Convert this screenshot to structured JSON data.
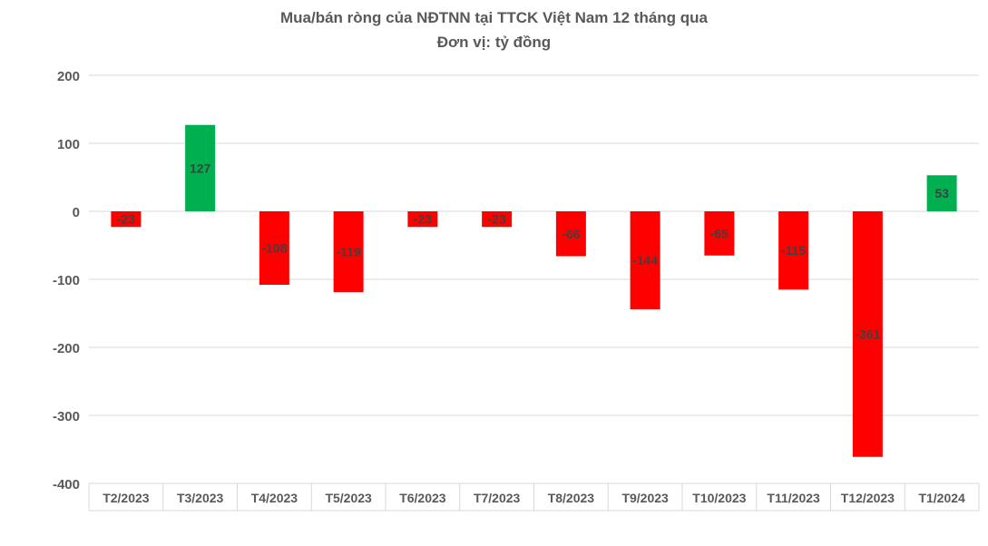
{
  "chart_data": {
    "type": "bar",
    "title": "Mua/bán ròng của NĐTNN tại TTCK Việt Nam 12 tháng qua",
    "subtitle": "Đơn vị: tỷ đồng",
    "categories": [
      "T2/2023",
      "T3/2023",
      "T4/2023",
      "T5/2023",
      "T6/2023",
      "T7/2023",
      "T8/2023",
      "T9/2023",
      "T10/2023",
      "T11/2023",
      "T12/2023",
      "T1/2024"
    ],
    "values": [
      -23,
      127,
      -108,
      -119,
      -23,
      -23,
      -66,
      -144,
      -65,
      -115,
      -361,
      53
    ],
    "ylim": [
      -400,
      200
    ],
    "yticks": [
      200,
      100,
      0,
      -100,
      -200,
      -300,
      -400
    ],
    "grid": true,
    "colors": {
      "positive": "#00b050",
      "negative": "#ff0000",
      "grid": "#d9d9d9",
      "text": "#595959",
      "label": "#404040"
    }
  }
}
